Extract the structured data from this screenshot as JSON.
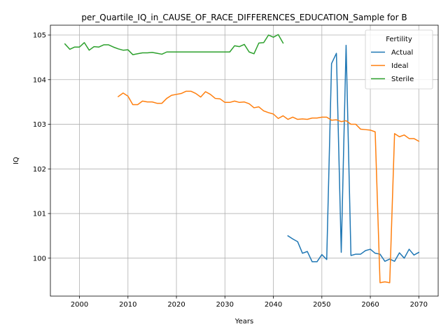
{
  "chart_data": {
    "type": "line",
    "title": "per_Quartile_IQ_in_CAUSE_OF_RACE_DIFFERENCES_EDUCATION_Sample for B",
    "xlabel": "Years",
    "ylabel": "IQ",
    "xlim": [
      1994,
      2074
    ],
    "ylim": [
      99.15,
      105.22
    ],
    "xticks": [
      2000,
      2010,
      2020,
      2030,
      2040,
      2050,
      2060,
      2070
    ],
    "yticks": [
      100,
      101,
      102,
      103,
      104,
      105
    ],
    "grid": true,
    "legend": {
      "title": "Fertility",
      "position": "top-right"
    },
    "series": [
      {
        "name": "Actual",
        "color": "#1f77b4",
        "x": [
          2043,
          2044,
          2045,
          2046,
          2047,
          2048,
          2049,
          2050,
          2051,
          2052,
          2053,
          2054,
          2055,
          2056,
          2057,
          2058,
          2059,
          2060,
          2061,
          2062,
          2063,
          2064,
          2065,
          2066,
          2067,
          2068,
          2069,
          2070
        ],
        "y": [
          100.5,
          100.43,
          100.37,
          100.11,
          100.15,
          99.92,
          99.92,
          100.08,
          99.97,
          104.36,
          104.59,
          100.13,
          104.77,
          100.06,
          100.09,
          100.09,
          100.17,
          100.2,
          100.11,
          100.09,
          99.93,
          99.98,
          99.93,
          100.12,
          100.0,
          100.2,
          100.07,
          100.13
        ]
      },
      {
        "name": "Ideal",
        "color": "#ff7f0e",
        "x": [
          2008,
          2009,
          2010,
          2011,
          2012,
          2013,
          2014,
          2015,
          2016,
          2017,
          2018,
          2019,
          2020,
          2021,
          2022,
          2023,
          2024,
          2025,
          2026,
          2027,
          2028,
          2029,
          2030,
          2031,
          2032,
          2033,
          2034,
          2035,
          2036,
          2037,
          2038,
          2039,
          2040,
          2041,
          2042,
          2043,
          2044,
          2045,
          2046,
          2047,
          2048,
          2049,
          2050,
          2051,
          2052,
          2053,
          2054,
          2055,
          2056,
          2057,
          2058,
          2059,
          2060,
          2061,
          2062,
          2063,
          2064,
          2065,
          2066,
          2067,
          2068,
          2069,
          2070
        ],
        "y": [
          103.62,
          103.7,
          103.63,
          103.44,
          103.44,
          103.52,
          103.5,
          103.5,
          103.47,
          103.47,
          103.58,
          103.65,
          103.67,
          103.69,
          103.74,
          103.74,
          103.69,
          103.61,
          103.73,
          103.67,
          103.58,
          103.57,
          103.49,
          103.49,
          103.52,
          103.49,
          103.5,
          103.46,
          103.37,
          103.39,
          103.3,
          103.26,
          103.23,
          103.13,
          103.19,
          103.11,
          103.16,
          103.11,
          103.12,
          103.11,
          103.14,
          103.14,
          103.16,
          103.16,
          103.09,
          103.1,
          103.06,
          103.08,
          103.0,
          103.0,
          102.89,
          102.88,
          102.87,
          102.83,
          99.45,
          99.47,
          99.45,
          102.79,
          102.72,
          102.76,
          102.68,
          102.68,
          102.62
        ]
      },
      {
        "name": "Sterile",
        "color": "#2ca02c",
        "x": [
          1997,
          1998,
          1999,
          2000,
          2001,
          2002,
          2003,
          2004,
          2005,
          2006,
          2007,
          2008,
          2009,
          2010,
          2011,
          2012,
          2013,
          2014,
          2015,
          2016,
          2017,
          2018,
          2019,
          2020,
          2021,
          2022,
          2023,
          2024,
          2025,
          2026,
          2027,
          2028,
          2029,
          2030,
          2031,
          2032,
          2033,
          2034,
          2035,
          2036,
          2037,
          2038,
          2039,
          2040,
          2041,
          2042
        ],
        "y": [
          104.8,
          104.68,
          104.73,
          104.73,
          104.83,
          104.66,
          104.74,
          104.73,
          104.78,
          104.78,
          104.73,
          104.69,
          104.66,
          104.67,
          104.56,
          104.58,
          104.6,
          104.6,
          104.61,
          104.59,
          104.57,
          104.62,
          104.62,
          104.62,
          104.62,
          104.62,
          104.62,
          104.62,
          104.62,
          104.62,
          104.62,
          104.62,
          104.62,
          104.62,
          104.62,
          104.76,
          104.74,
          104.79,
          104.62,
          104.58,
          104.82,
          104.83,
          105.0,
          104.95,
          105.01,
          104.82
        ]
      }
    ]
  }
}
